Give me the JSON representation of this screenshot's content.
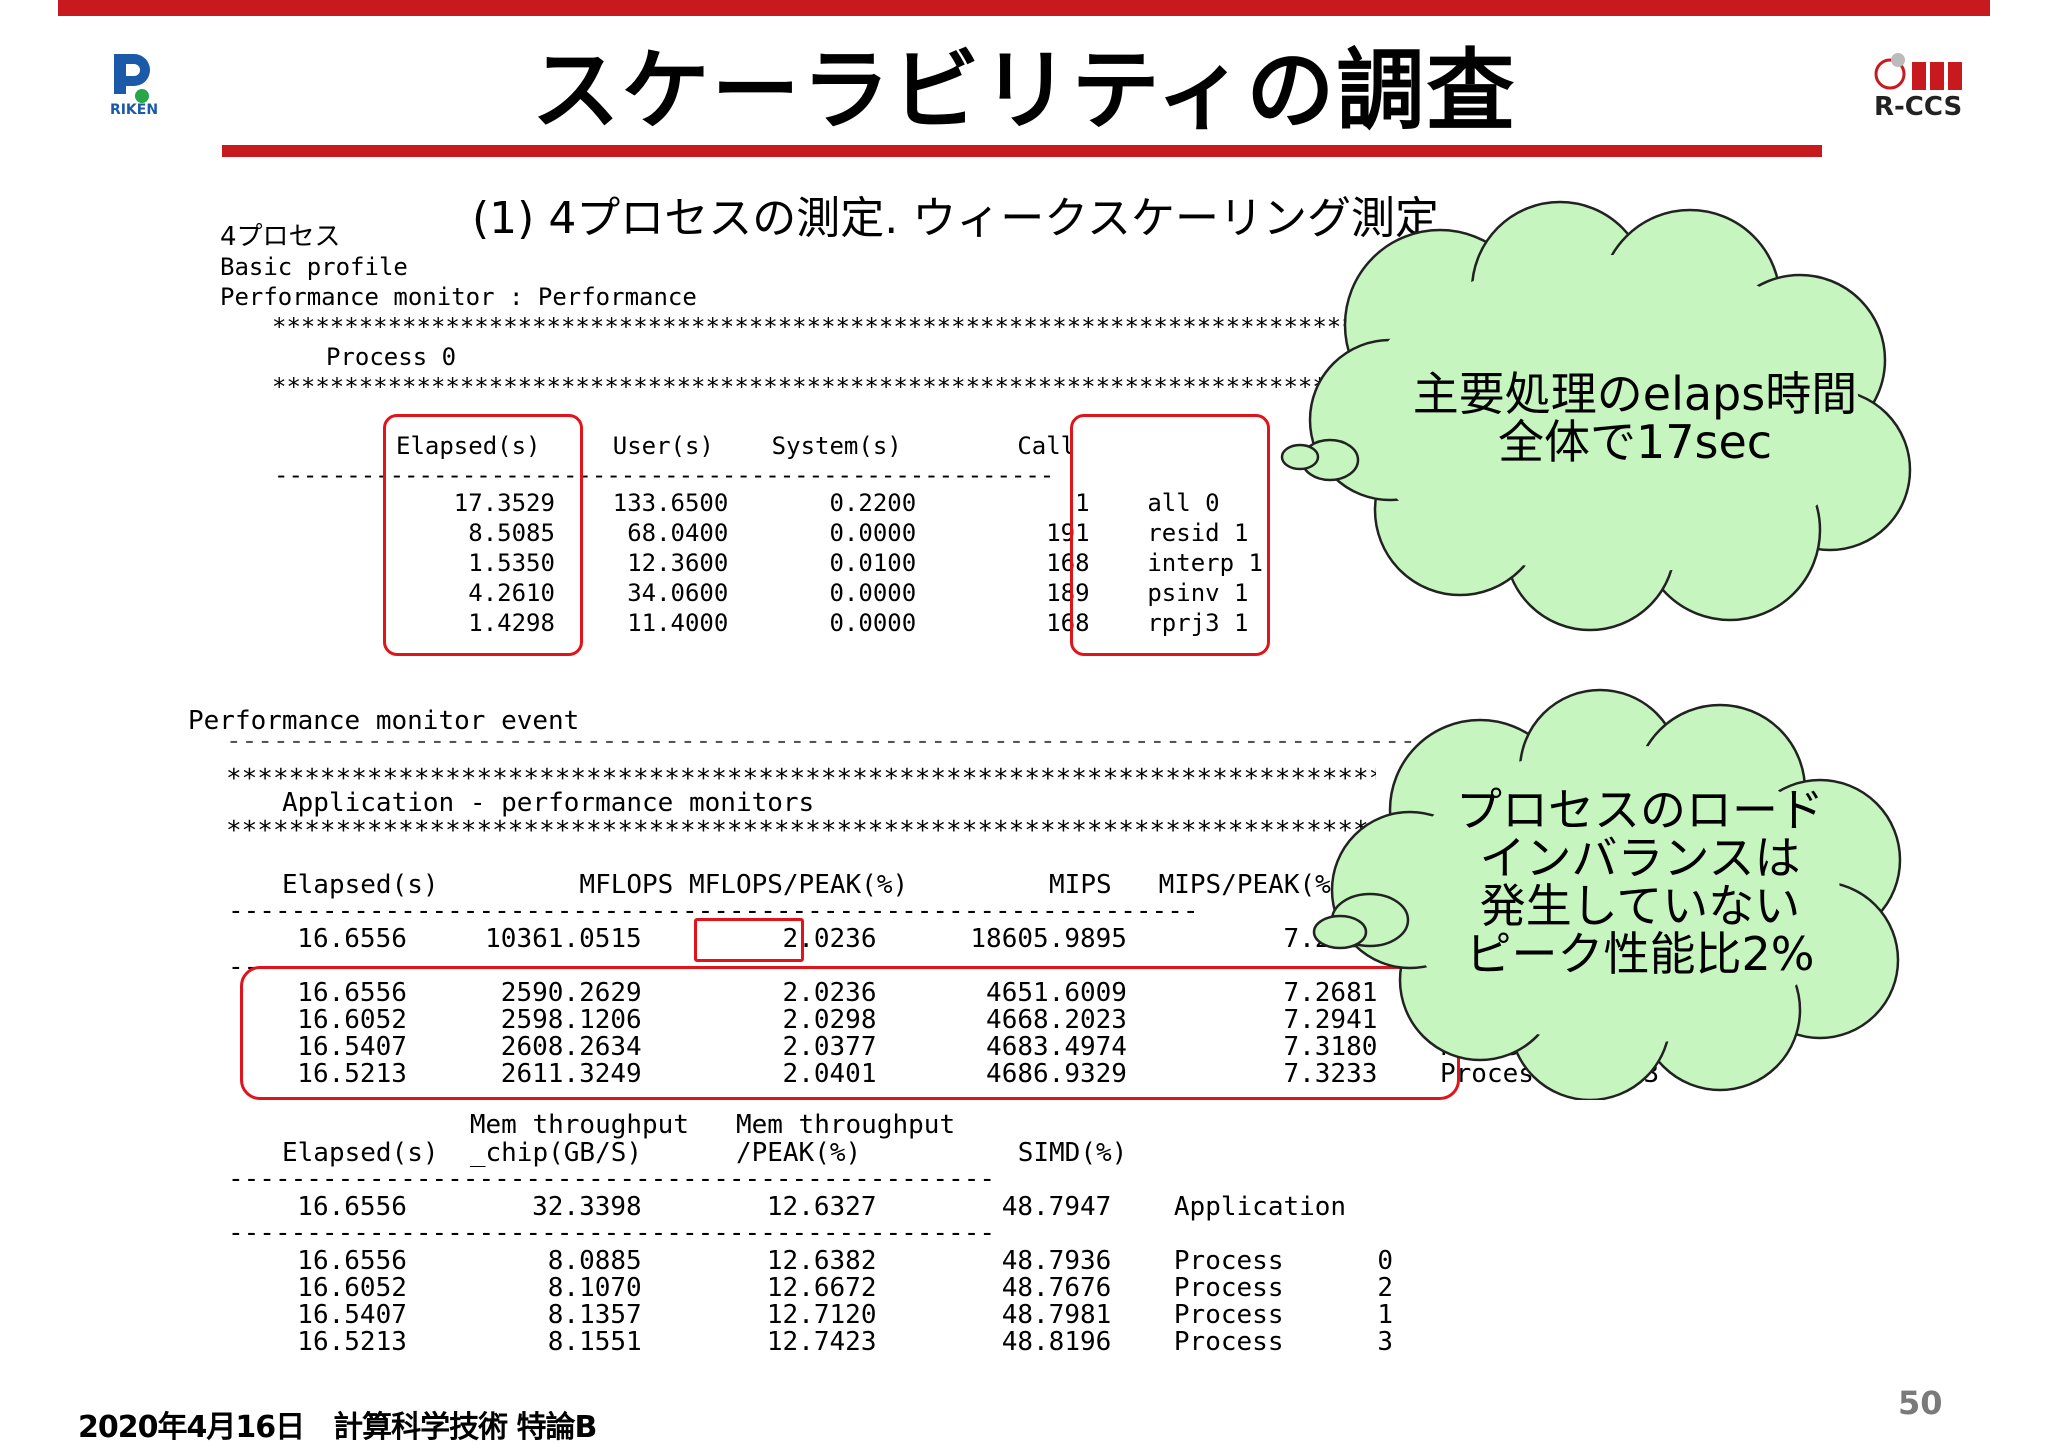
{
  "slide": {
    "title": "スケーラビリティの調査",
    "subtitle": "(1) 4プロセスの測定. ウィークスケーリング測定",
    "logo_left_text": "RIKEN",
    "logo_right_text": "R-CCS",
    "footer_date": "2020年4月16日　計算科学技術 特論B",
    "page_number": "50"
  },
  "basic": {
    "heading": "4プロセス",
    "line1": "Basic profile",
    "line2": "Performance monitor : Performance",
    "stars1": "*****************************************************************************************",
    "process_label": "Process 0",
    "stars2": "***********************************************************************************",
    "header": "Elapsed(s)     User(s)    System(s)        Call",
    "dashes": "------------------------------------------------------------",
    "rows": [
      "    17.3529    133.6500       0.2200           1    all 0",
      "     8.5085     68.0400       0.0000         191    resid 1",
      "     1.5350     12.3600       0.0100         168    interp 1",
      "     4.2610     34.0600       0.0000         189    psinv 1",
      "     1.4298     11.4000       0.0000         168    rprj3 1"
    ]
  },
  "event": {
    "heading": "Performance monitor event",
    "dash_long": "-----------------------------------------------------------------------------------------",
    "stars": "*********************************************************************************",
    "app_title": "Application - performance monitors",
    "header": "Elapsed(s)         MFLOPS MFLOPS/PEAK(%)         MIPS   MIPS/PEAK(%)",
    "dashes": "--------------------------------------------------------------------",
    "app_row": "  16.6556     10361.0515         2.0236      18605.9895          7.2680    Application",
    "short_dash": "--",
    "proc_rows": [
      "  16.6556      2590.2629         2.0236       4651.6009          7.2681    Process      0",
      "  16.6052      2598.1206         2.0298       4668.2023          7.2941    Process      2",
      "  16.5407      2608.2634         2.0377       4683.4974          7.3180    Process      1",
      "  16.5213      2611.3249         2.0401       4686.9329          7.3233    Process      3"
    ]
  },
  "mem": {
    "header1": "            Mem throughput   Mem throughput",
    "header2": "Elapsed(s)  _chip(GB/S)      /PEAK(%)          SIMD(%)",
    "dashes": "-------------------------------------------------------",
    "app_row": "  16.6556        32.3398        12.6327        48.7947    Application",
    "proc_rows": [
      "  16.6556         8.0885        12.6382        48.7936    Process      0",
      "  16.6052         8.1070        12.6672        48.7676    Process      2",
      "  16.5407         8.1357        12.7120        48.7981    Process      1",
      "  16.5213         8.1551        12.7423        48.8196    Process      3"
    ]
  },
  "callouts": {
    "cloud1": [
      "主要処理のelaps時間",
      "全体で17sec"
    ],
    "cloud2": [
      "プロセスのロード",
      "インバランスは",
      "発生していない",
      "ピーク性能比2%"
    ]
  },
  "colors": {
    "accent_red": "#c8191e",
    "cloud_fill": "#c6f5c0",
    "box_red": "#e0141a",
    "logo_blue": "#1a5aa8",
    "logo_green": "#27a548"
  }
}
